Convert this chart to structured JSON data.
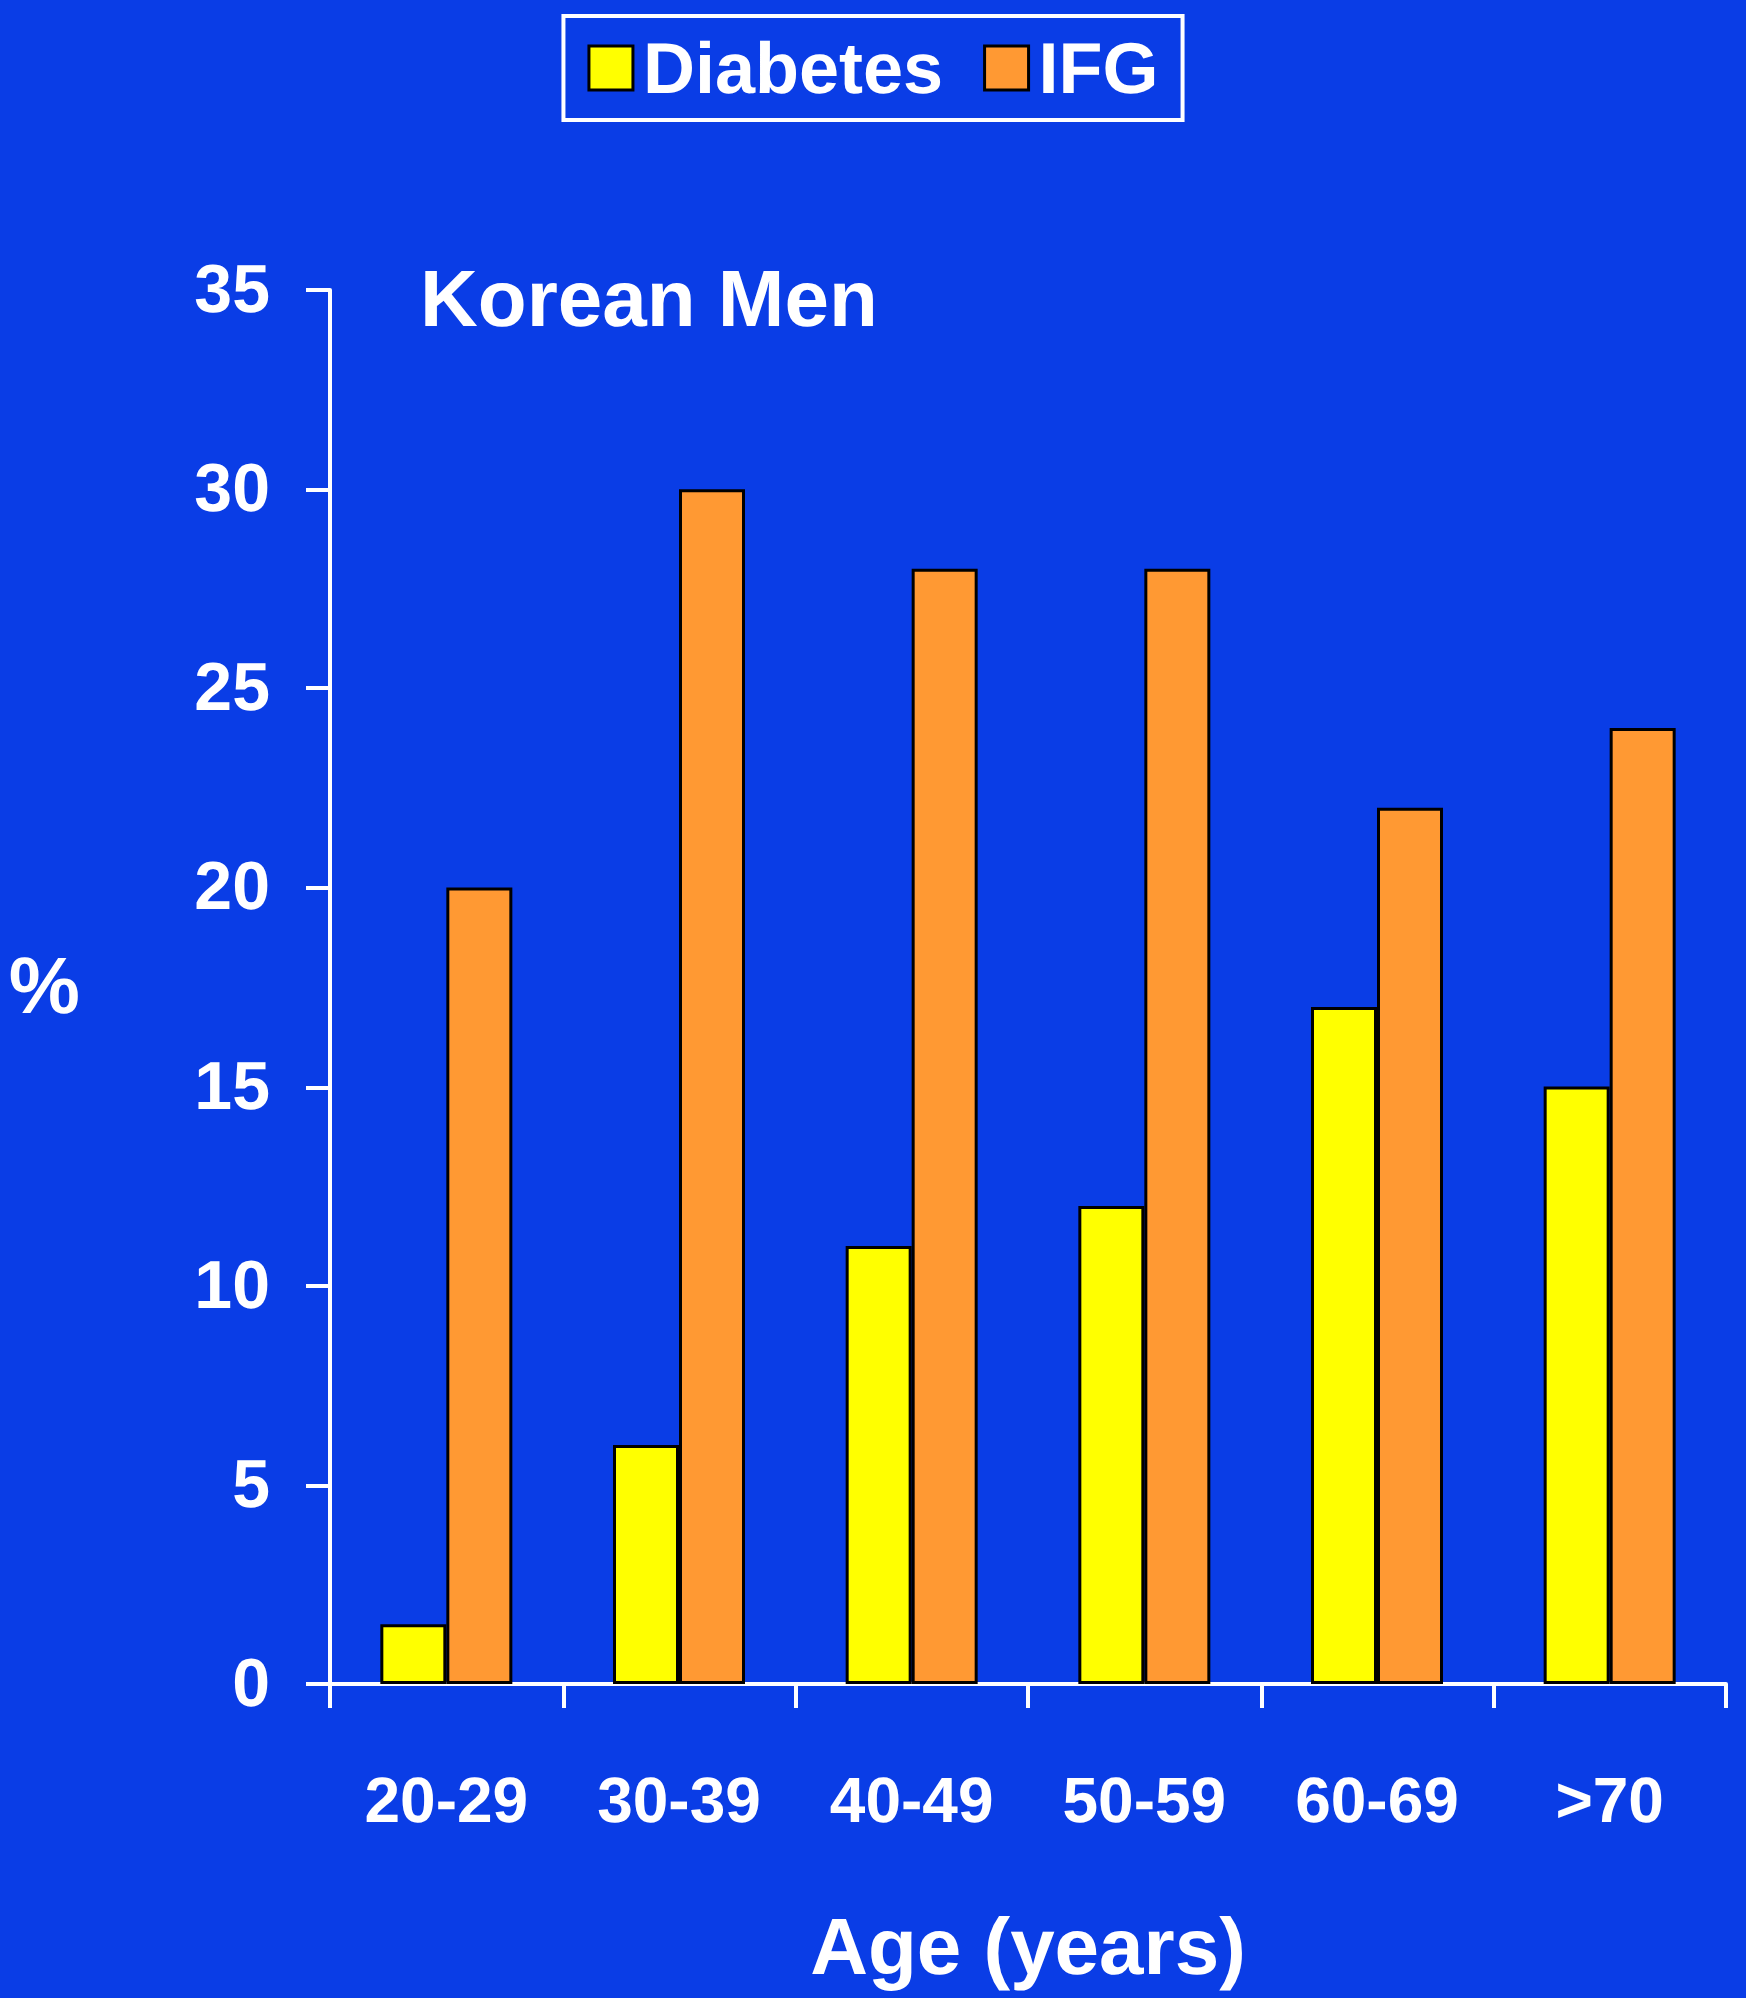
{
  "chart_data": {
    "type": "bar",
    "title": "Korean Men",
    "xlabel": "Age (years)",
    "ylabel": "%",
    "categories": [
      "20-29",
      "30-39",
      "40-49",
      "50-59",
      "60-69",
      ">70"
    ],
    "series": [
      {
        "name": "Diabetes",
        "color": "#ffff00",
        "values": [
          1.5,
          6,
          11,
          12,
          17,
          15
        ]
      },
      {
        "name": "IFG",
        "color": "#ff9933",
        "values": [
          20,
          30,
          28,
          28,
          22,
          24
        ]
      }
    ],
    "ylim": [
      0,
      35
    ],
    "yticks": [
      0,
      5,
      10,
      15,
      20,
      25,
      30,
      35
    ],
    "grid": false,
    "legend": "top"
  }
}
